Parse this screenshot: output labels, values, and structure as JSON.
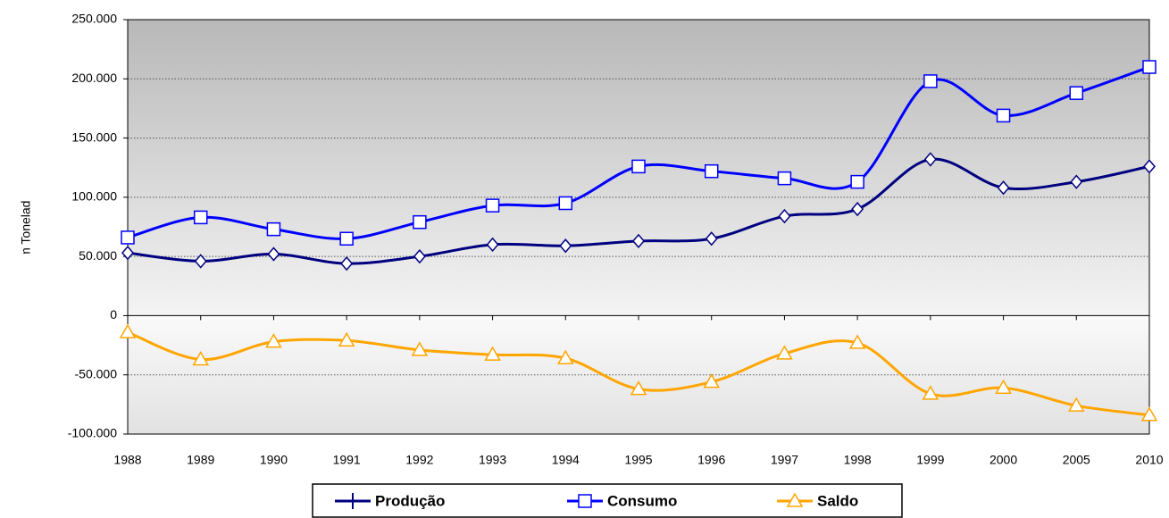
{
  "chart_data": {
    "type": "line",
    "y_label": "Em Toneladas",
    "categories": [
      "1988",
      "1989",
      "1990",
      "1991",
      "1992",
      "1993",
      "1994",
      "1995",
      "1996",
      "1997",
      "1998",
      "1999",
      "2000",
      "2005",
      "2010"
    ],
    "series": [
      {
        "name": "Produção",
        "color": "#000080",
        "marker": "diamond",
        "values": [
          53000,
          46000,
          52000,
          44000,
          50000,
          60000,
          59000,
          63000,
          65000,
          84000,
          90000,
          132000,
          108000,
          113000,
          126000
        ]
      },
      {
        "name": "Consumo",
        "color": "#0000ff",
        "marker": "square",
        "values": [
          66000,
          83000,
          73000,
          65000,
          79000,
          93000,
          95000,
          126000,
          122000,
          116000,
          113000,
          198000,
          169000,
          188000,
          210000
        ]
      },
      {
        "name": "Saldo",
        "color": "#ffa500",
        "marker": "triangle",
        "values": [
          -14000,
          -37000,
          -22000,
          -21000,
          -29000,
          -33000,
          -36000,
          -62000,
          -56000,
          -32000,
          -23000,
          -66000,
          -61000,
          -76000,
          -84000
        ]
      }
    ],
    "ylim": [
      -100000,
      250000
    ],
    "yticks": [
      {
        "value": -100000,
        "label": "-100.000"
      },
      {
        "value": -50000,
        "label": "-50.000"
      },
      0,
      {
        "value": 50000,
        "label": "50.000"
      },
      {
        "value": 100000,
        "label": "100.000"
      },
      {
        "value": 150000,
        "label": "150.000"
      },
      {
        "value": 200000,
        "label": "200.000"
      },
      {
        "value": 250000,
        "label": "250.000"
      }
    ],
    "grid": true,
    "legend": "bottom"
  }
}
